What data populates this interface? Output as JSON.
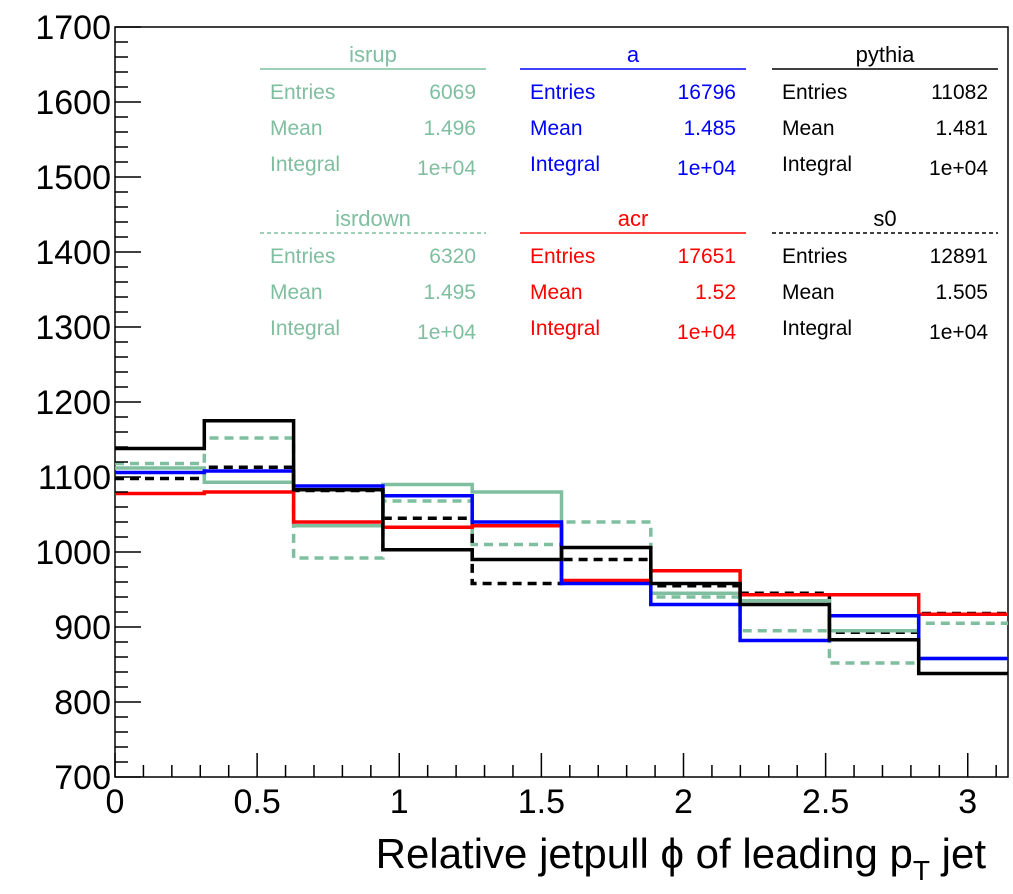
{
  "chart_data": {
    "type": "line",
    "title": "",
    "xlabel": "Relative jetpull ϕ of leading p",
    "xlabel_subscript": "T",
    "xlabel_suffix": " jet",
    "ylabel": "",
    "xlim": [
      0,
      3.1416
    ],
    "ylim": [
      700,
      1700
    ],
    "grid": false,
    "x_ticks": [
      0,
      0.5,
      1,
      1.5,
      2,
      2.5,
      3
    ],
    "x_tick_labels": [
      "0",
      "0.5",
      "1",
      "1.5",
      "2",
      "2.5",
      "3"
    ],
    "y_ticks": [
      700,
      800,
      900,
      1000,
      1100,
      1200,
      1300,
      1400,
      1500,
      1600,
      1700
    ],
    "y_tick_labels": [
      "700",
      "800",
      "900",
      "1000",
      "1100",
      "1200",
      "1300",
      "1400",
      "1500",
      "1600",
      "1700"
    ],
    "bin_edges": [
      0,
      0.3142,
      0.6283,
      0.9425,
      1.2566,
      1.5708,
      1.885,
      2.1991,
      2.5133,
      2.8274,
      3.1416
    ],
    "series": [
      {
        "name": "isrup",
        "color": "#7fbf9f",
        "dashed": false,
        "values": [
          1112,
          1093,
          1035,
          1090,
          1080,
          960,
          945,
          935,
          895,
          858
        ],
        "stats": {
          "entries_label": "Entries",
          "entries": "6069",
          "mean_label": "Mean",
          "mean": "1.496",
          "integral_label": "Integral",
          "integral": "1e+04"
        }
      },
      {
        "name": "a",
        "color": "#0000ff",
        "dashed": false,
        "values": [
          1106,
          1108,
          1088,
          1075,
          1040,
          958,
          930,
          882,
          915,
          858
        ],
        "stats": {
          "entries_label": "Entries",
          "entries": "16796",
          "mean_label": "Mean",
          "mean": "1.485",
          "integral_label": "Integral",
          "integral": "1e+04"
        }
      },
      {
        "name": "pythia",
        "color": "#000000",
        "dashed": false,
        "values": [
          1138,
          1175,
          1083,
          1003,
          990,
          1006,
          958,
          930,
          883,
          838
        ],
        "stats": {
          "entries_label": "Entries",
          "entries": "11082",
          "mean_label": "Mean",
          "mean": "1.481",
          "integral_label": "Integral",
          "integral": "1e+04"
        }
      },
      {
        "name": "isrdown",
        "color": "#7fbf9f",
        "dashed": true,
        "values": [
          1118,
          1152,
          992,
          1068,
          1010,
          1040,
          940,
          895,
          852,
          905
        ],
        "stats": {
          "entries_label": "Entries",
          "entries": "6320",
          "mean_label": "Mean",
          "mean": "1.495",
          "integral_label": "Integral",
          "integral": "1e+04"
        }
      },
      {
        "name": "acr",
        "color": "#ff0000",
        "dashed": false,
        "values": [
          1078,
          1080,
          1040,
          1033,
          1035,
          962,
          975,
          943,
          943,
          917
        ],
        "stats": {
          "entries_label": "Entries",
          "entries": "17651",
          "mean_label": "Mean",
          "mean": "1.52",
          "integral_label": "Integral",
          "integral": "1e+04"
        }
      },
      {
        "name": "s0",
        "color": "#000000",
        "dashed": true,
        "values": [
          1098,
          1113,
          1082,
          1045,
          958,
          990,
          955,
          945,
          893,
          918
        ],
        "stats": {
          "entries_label": "Entries",
          "entries": "12891",
          "mean_label": "Mean",
          "mean": "1.505",
          "integral_label": "Integral",
          "integral": "1e+04"
        }
      }
    ]
  }
}
